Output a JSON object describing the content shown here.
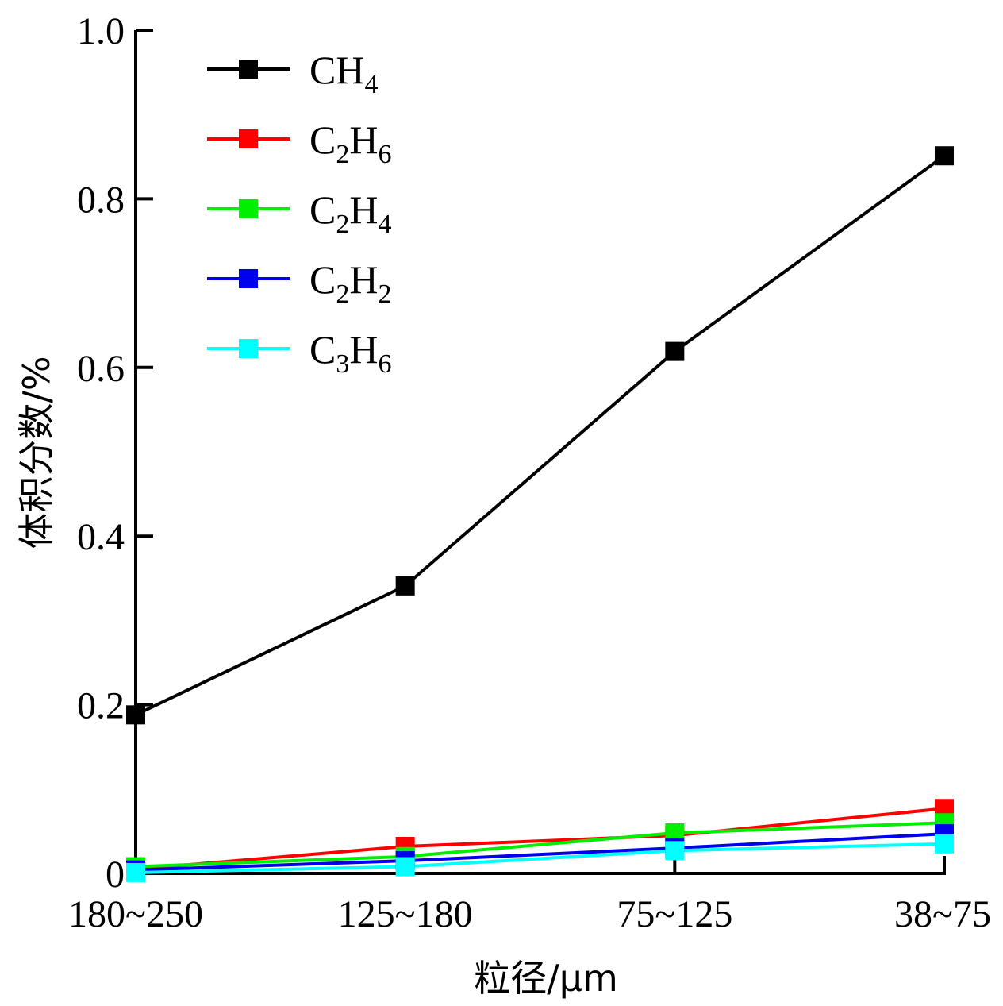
{
  "chart_data": {
    "type": "line",
    "title": "",
    "xlabel": "粒径/μm",
    "ylabel": "体积分数/%",
    "categories": [
      "180~250",
      "125~180",
      "75~125",
      "38~75"
    ],
    "ylim": [
      0,
      1.0
    ],
    "yticks": [
      0,
      0.2,
      0.4,
      0.6,
      0.8,
      1.0
    ],
    "ytick_labels": [
      "0",
      "0.2",
      "0.4",
      "0.6",
      "0.8",
      "1.0"
    ],
    "grid": false,
    "legend_position": "top-left",
    "marker": "square",
    "series": [
      {
        "name": "CH4",
        "label_main": "CH",
        "label_sub": "4",
        "label_main2": "",
        "label_sub2": "",
        "color": "#000000",
        "values": [
          0.188,
          0.341,
          0.619,
          0.851
        ]
      },
      {
        "name": "C2H6",
        "label_main": "C",
        "label_sub": "2",
        "label_main2": "H",
        "label_sub2": "6",
        "color": "#ff0000",
        "values": [
          0.005,
          0.032,
          0.045,
          0.077
        ]
      },
      {
        "name": "C2H4",
        "label_main": "C",
        "label_sub": "2",
        "label_main2": "H",
        "label_sub2": "4",
        "color": "#00ee00",
        "values": [
          0.008,
          0.02,
          0.048,
          0.06
        ]
      },
      {
        "name": "C2H2",
        "label_main": "C",
        "label_sub": "2",
        "label_main2": "H",
        "label_sub2": "2",
        "color": "#0000ee",
        "values": [
          0.004,
          0.015,
          0.03,
          0.047
        ]
      },
      {
        "name": "C3H6",
        "label_main": "C",
        "label_sub": "3",
        "label_main2": "H",
        "label_sub2": "6",
        "color": "#00ffff",
        "values": [
          0.001,
          0.008,
          0.027,
          0.035
        ]
      }
    ]
  }
}
